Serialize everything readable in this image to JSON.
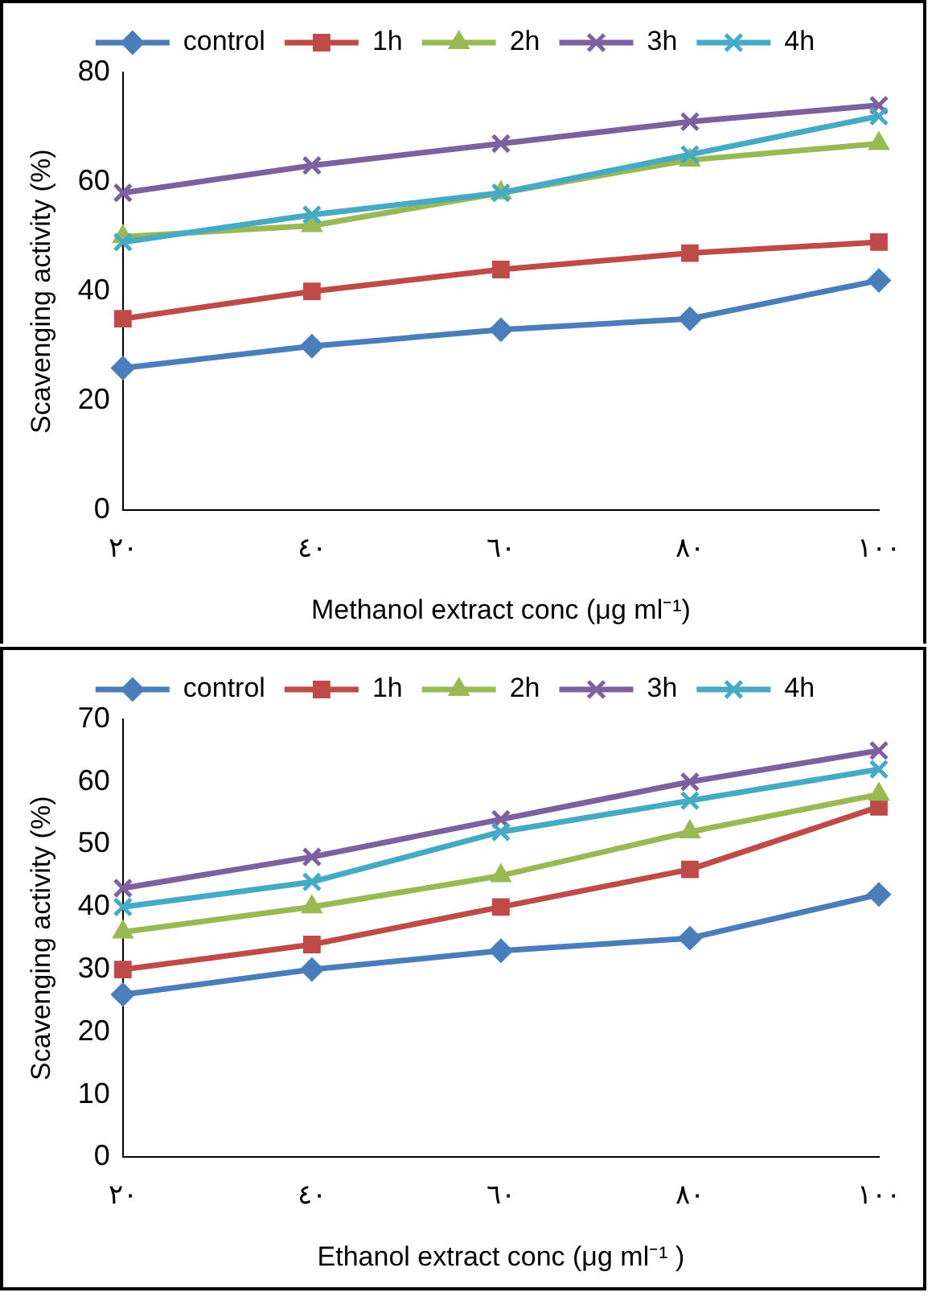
{
  "chart_data": [
    {
      "type": "line",
      "xlabel": "Methanol extract conc (μg ml⁻¹)",
      "ylabel": "Scavenging activity (%)",
      "categories": [
        "٢٠",
        "٤٠",
        "٦٠",
        "٨٠",
        "١٠٠"
      ],
      "ylim": [
        0,
        80
      ],
      "yticks": [
        0,
        20,
        40,
        60,
        80
      ],
      "grid": false,
      "legend": "top",
      "series": [
        {
          "name": "control",
          "color": "#4a7ebb",
          "marker": "diamond",
          "values": [
            26,
            30,
            33,
            35,
            42
          ]
        },
        {
          "name": "1h",
          "color": "#be4b48",
          "marker": "square",
          "values": [
            35,
            40,
            44,
            47,
            49
          ]
        },
        {
          "name": "2h",
          "color": "#98b954",
          "marker": "triangle",
          "values": [
            50,
            52,
            58,
            64,
            67
          ]
        },
        {
          "name": "3h",
          "color": "#7d60a0",
          "marker": "cross",
          "values": [
            58,
            63,
            67,
            71,
            74
          ]
        },
        {
          "name": "4h",
          "color": "#46aac5",
          "marker": "cross",
          "values": [
            49,
            54,
            58,
            65,
            72
          ]
        }
      ]
    },
    {
      "type": "line",
      "xlabel": "Ethanol extract conc (μg ml⁻¹ )",
      "ylabel": "Scavenging activity (%)",
      "categories": [
        "٢٠",
        "٤٠",
        "٦٠",
        "٨٠",
        "١٠٠"
      ],
      "ylim": [
        0,
        70
      ],
      "yticks": [
        0,
        10,
        20,
        30,
        40,
        50,
        60,
        70
      ],
      "grid": false,
      "legend": "top",
      "series": [
        {
          "name": "control",
          "color": "#4a7ebb",
          "marker": "diamond",
          "values": [
            26,
            30,
            33,
            35,
            42
          ]
        },
        {
          "name": "1h",
          "color": "#be4b48",
          "marker": "square",
          "values": [
            30,
            34,
            40,
            46,
            56
          ]
        },
        {
          "name": "2h",
          "color": "#98b954",
          "marker": "triangle",
          "values": [
            36,
            40,
            45,
            52,
            58
          ]
        },
        {
          "name": "3h",
          "color": "#7d60a0",
          "marker": "cross",
          "values": [
            43,
            48,
            54,
            60,
            65
          ]
        },
        {
          "name": "4h",
          "color": "#46aac5",
          "marker": "cross",
          "values": [
            40,
            44,
            52,
            57,
            62
          ]
        }
      ]
    }
  ]
}
